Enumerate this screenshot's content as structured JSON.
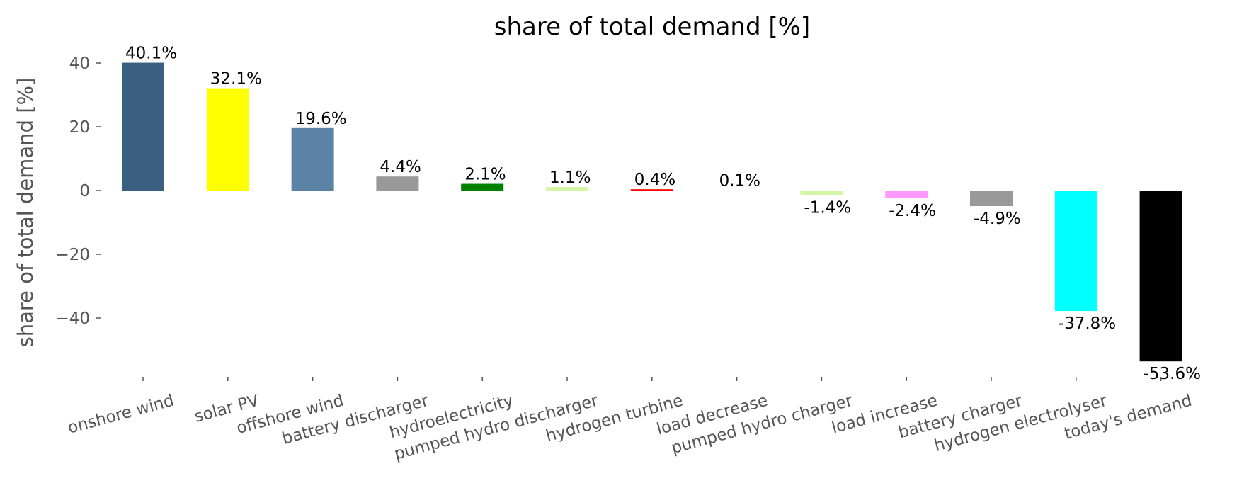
{
  "chart_data": {
    "type": "bar",
    "title": "share of total demand [%]",
    "xlabel": "",
    "ylabel": "share of total demand [%]",
    "ylim": [
      -59,
      46
    ],
    "yticks": [
      40,
      20,
      0,
      -20,
      -40
    ],
    "ytick_labels": [
      "40",
      "20",
      "0",
      "−20",
      "−40"
    ],
    "grid": false,
    "categories": [
      "onshore wind",
      "solar PV",
      "offshore wind",
      "battery discharger",
      "hydroelectricity",
      "pumped hydro discharger",
      "hydrogen turbine",
      "load decrease",
      "pumped hydro charger",
      "load increase",
      "battery charger",
      "hydrogen electrolyser",
      "today's demand"
    ],
    "values": [
      40.1,
      32.1,
      19.6,
      4.4,
      2.1,
      1.1,
      0.4,
      0.1,
      -1.4,
      -2.4,
      -4.9,
      -37.8,
      -53.6
    ],
    "data_labels": [
      "40.1%",
      "32.1%",
      "19.6%",
      "4.4%",
      "2.1%",
      "1.1%",
      "0.4%",
      "0.1%",
      "-1.4%",
      "-2.4%",
      "-4.9%",
      "-37.8%",
      "-53.6%"
    ],
    "colors": [
      "#3b5f80",
      "#ffff00",
      "#5b83a5",
      "#999999",
      "#008000",
      "#d4f5a3",
      "#ff0000",
      "#ffffff",
      "#d4f5a3",
      "#ff99ff",
      "#999999",
      "#00ffff",
      "#000000"
    ]
  }
}
